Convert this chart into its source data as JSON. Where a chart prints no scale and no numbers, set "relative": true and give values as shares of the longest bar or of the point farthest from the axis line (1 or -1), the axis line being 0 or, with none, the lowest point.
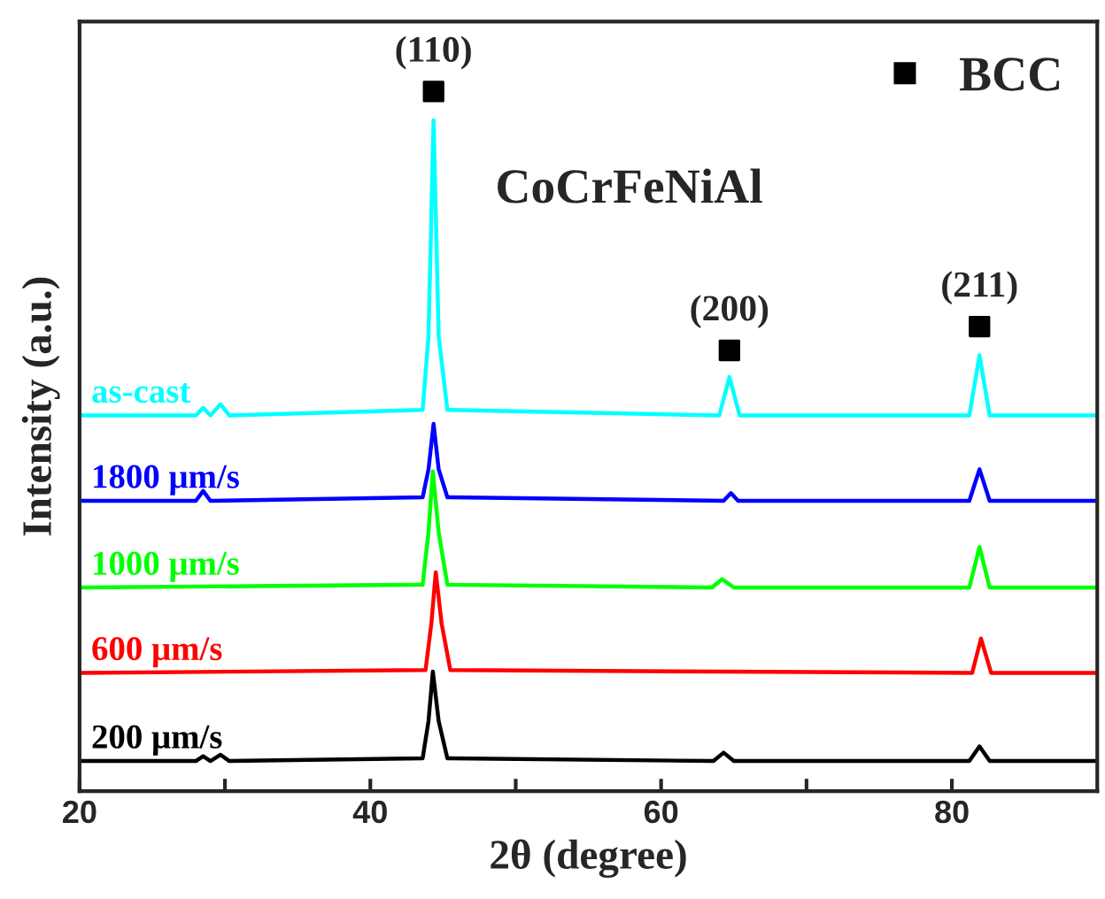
{
  "chart_data": {
    "type": "line",
    "relative": true,
    "xlabel": "2θ (degree)",
    "ylabel": "Intensity (a.u.)",
    "xlim": [
      20,
      90
    ],
    "xticks": [
      20,
      {
        "value": 30,
        "label": null
      },
      40,
      {
        "value": 50,
        "label": null
      },
      60,
      {
        "value": 70,
        "label": null
      },
      80
    ],
    "tick_labels": "x",
    "grid": false,
    "legend": "top right",
    "marker": "none",
    "line_style": "solid",
    "annotations": [
      "CoCrFeNiAl",
      {
        "text": "(110)",
        "x": 44.35,
        "y": 1.0
      },
      {
        "text": "(200)",
        "x": 64.7,
        "y": 0.63
      },
      {
        "text": "(211)",
        "x": 81.9,
        "y": 0.664
      }
    ],
    "series": [
      {
        "name": "as-cast",
        "color": "#00ffff",
        "x": [
          20,
          28,
          28.5,
          29,
          29.7,
          30.3,
          43.6,
          44.0,
          44.35,
          44.7,
          45.3,
          64.0,
          64.7,
          65.4,
          81.2,
          81.9,
          82.6,
          90
        ],
        "values": [
          0.537,
          0.537,
          0.548,
          0.537,
          0.553,
          0.537,
          0.545,
          0.65,
          0.959,
          0.65,
          0.545,
          0.537,
          0.592,
          0.537,
          0.537,
          0.623,
          0.537,
          0.537
        ]
      },
      {
        "name": "1800 μm/s",
        "color": "#0000ff",
        "x": [
          20,
          28,
          28.5,
          29,
          43.6,
          44.0,
          44.35,
          44.7,
          45.3,
          64.3,
          64.8,
          65.3,
          81.2,
          81.9,
          82.6,
          90
        ],
        "values": [
          0.415,
          0.415,
          0.429,
          0.415,
          0.42,
          0.46,
          0.525,
          0.46,
          0.42,
          0.415,
          0.426,
          0.415,
          0.415,
          0.46,
          0.415,
          0.415
        ]
      },
      {
        "name": "1000 μm/s",
        "color": "#00ff00",
        "x": [
          20,
          43.6,
          44.0,
          44.3,
          44.7,
          45.3,
          63.5,
          64.2,
          65.0,
          81.2,
          81.9,
          82.6,
          90
        ],
        "values": [
          0.291,
          0.295,
          0.37,
          0.457,
          0.37,
          0.295,
          0.291,
          0.303,
          0.291,
          0.291,
          0.349,
          0.291,
          0.291
        ]
      },
      {
        "name": "600 μm/s",
        "color": "#ff0000",
        "x": [
          20,
          43.8,
          44.2,
          44.5,
          44.9,
          45.5,
          81.4,
          82.0,
          82.7,
          90
        ],
        "values": [
          0.169,
          0.173,
          0.24,
          0.313,
          0.24,
          0.173,
          0.169,
          0.218,
          0.169,
          0.169
        ]
      },
      {
        "name": "200 μm/s",
        "color": "#000000",
        "x": [
          20,
          28,
          28.5,
          29,
          29.7,
          30.3,
          43.6,
          44.0,
          44.3,
          44.7,
          45.3,
          63.6,
          64.3,
          65.0,
          81.2,
          81.9,
          82.6,
          90
        ],
        "values": [
          0.043,
          0.043,
          0.05,
          0.043,
          0.052,
          0.043,
          0.047,
          0.1,
          0.171,
          0.1,
          0.047,
          0.043,
          0.055,
          0.043,
          0.043,
          0.064,
          0.043,
          0.043
        ]
      },
      {
        "name": "BCC",
        "type": "scatter",
        "marker": "square",
        "color": "#000000",
        "x": [
          44.35,
          64.7,
          81.9
        ],
        "values": [
          1.0,
          0.63,
          0.664
        ]
      }
    ]
  }
}
